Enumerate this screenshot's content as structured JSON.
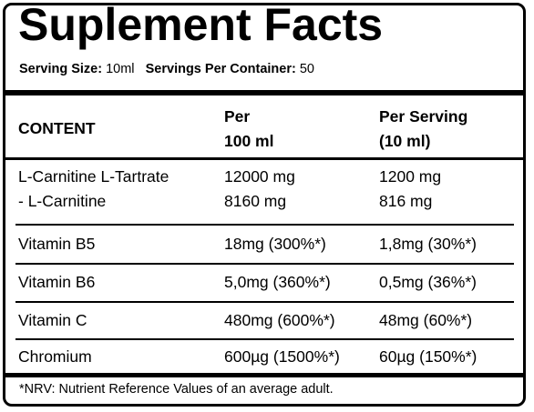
{
  "title": "Suplement Facts",
  "serving": {
    "size_label": "Serving Size:",
    "size_value": "10ml",
    "per_container_label": "Servings Per Container:",
    "per_container_value": "50"
  },
  "table": {
    "headers": {
      "content": "CONTENT",
      "per100_line1": "Per",
      "per100_line2": "100 ml",
      "perserving_line1": "Per Serving",
      "perserving_line2": "(10 ml)"
    },
    "rows": [
      {
        "name": [
          "L-Carnitine L-Tartrate",
          "- L-Carnitine"
        ],
        "per100": [
          "12000 mg",
          "8160 mg"
        ],
        "perserving": [
          "1200 mg",
          "816 mg"
        ]
      },
      {
        "name": [
          "Vitamin B5"
        ],
        "per100": [
          "18mg (300%*)"
        ],
        "perserving": [
          "1,8mg (30%*)"
        ]
      },
      {
        "name": [
          "Vitamin B6"
        ],
        "per100": [
          "5,0mg (360%*)"
        ],
        "perserving": [
          "0,5mg (36%*)"
        ]
      },
      {
        "name": [
          "Vitamin C"
        ],
        "per100": [
          "480mg (600%*)"
        ],
        "perserving": [
          "48mg (60%*)"
        ]
      },
      {
        "name": [
          "Chromium"
        ],
        "per100": [
          "600µg (1500%*)"
        ],
        "perserving": [
          "60µg (150%*)"
        ]
      }
    ]
  },
  "footnote": "*NRV: Nutrient Reference Values of an average adult."
}
